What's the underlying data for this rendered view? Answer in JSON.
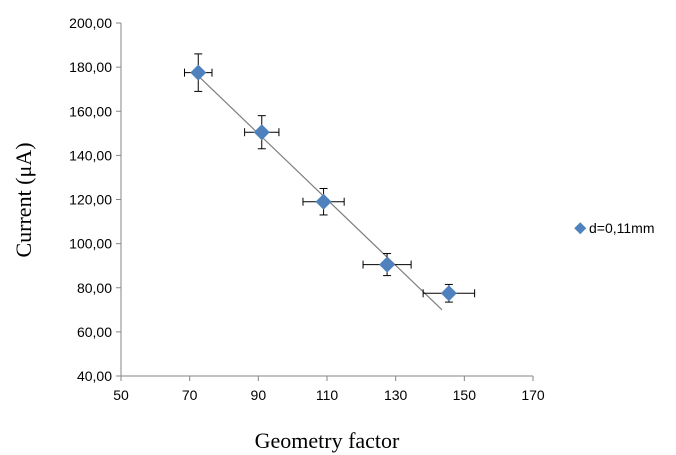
{
  "chart_data": {
    "type": "scatter",
    "xlabel": "Geometry factor",
    "ylabel": "Current (μA)",
    "xlim": [
      50,
      170
    ],
    "ylim": [
      40,
      200
    ],
    "xticks": [
      "50",
      "70",
      "90",
      "110",
      "130",
      "150",
      "170"
    ],
    "yticks": [
      "40,00",
      "60,00",
      "80,00",
      "100,00",
      "120,00",
      "140,00",
      "160,00",
      "180,00",
      "200,00"
    ],
    "grid": false,
    "legend_position": "right",
    "series": [
      {
        "name": "d=0,11mm",
        "color": "#4f81bd",
        "marker": "diamond",
        "points": [
          {
            "x": 72.5,
            "y": 177.5,
            "xerr": 4,
            "yerr": 8.5
          },
          {
            "x": 91,
            "y": 150.5,
            "xerr": 5,
            "yerr": 7.5
          },
          {
            "x": 109,
            "y": 119,
            "xerr": 6,
            "yerr": 6
          },
          {
            "x": 127.5,
            "y": 90.5,
            "xerr": 7,
            "yerr": 5
          },
          {
            "x": 145.5,
            "y": 77.5,
            "xerr": 7.5,
            "yerr": 4
          }
        ]
      }
    ],
    "trendline": {
      "color": "#7f7f7f",
      "x": [
        72.5,
        143.5
      ],
      "y": [
        176,
        70
      ]
    }
  }
}
